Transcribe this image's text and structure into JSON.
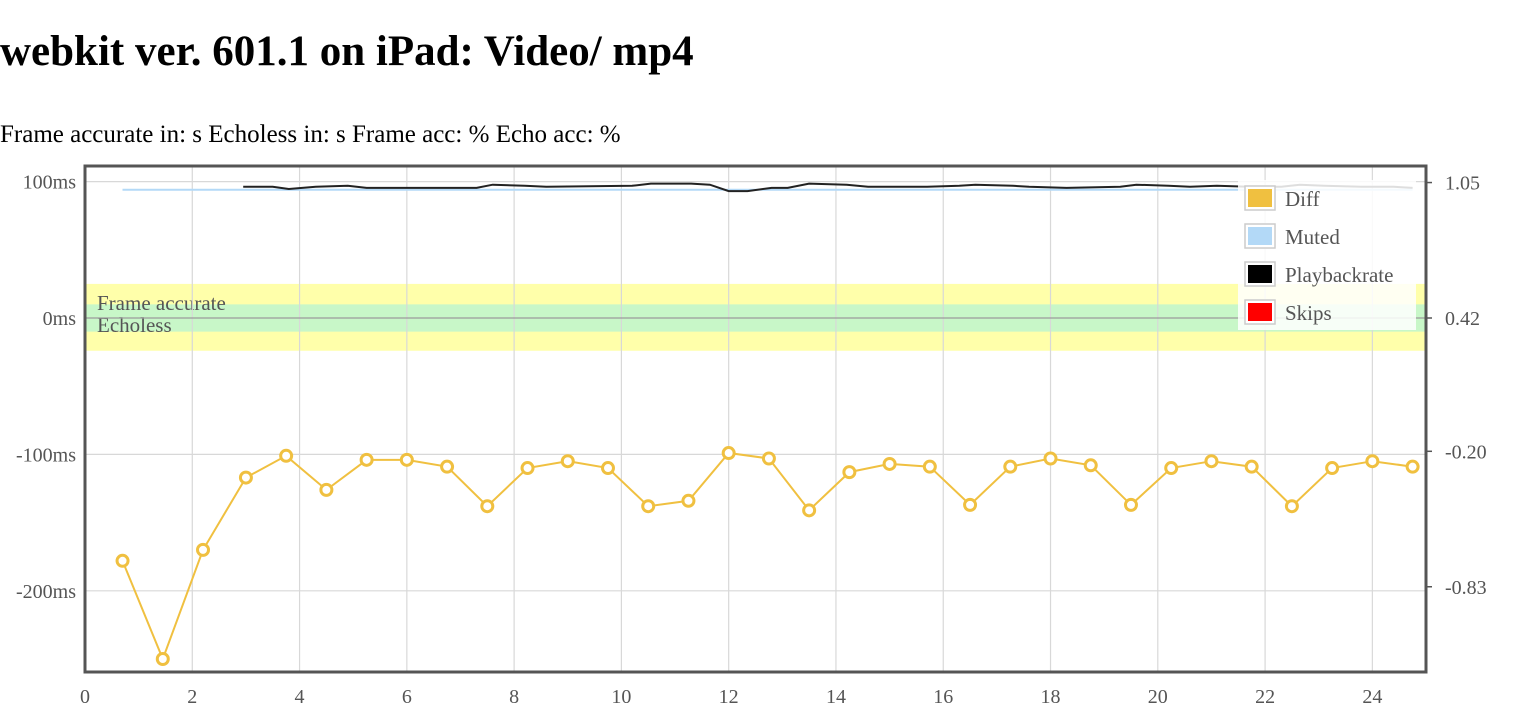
{
  "page": {
    "title": "webkit ver. 601.1 on iPad: Video/ mp4",
    "stats": {
      "frame_accurate": "Frame accurate in: s",
      "echoless": "Echoless in: s",
      "frame_acc": "Frame acc: %",
      "echo_acc": "Echo acc: %"
    }
  },
  "chart_data": {
    "type": "line",
    "x_ticks": [
      0,
      2,
      4,
      6,
      8,
      10,
      12,
      14,
      16,
      18,
      20,
      22,
      24
    ],
    "xlim": [
      0,
      25
    ],
    "y_left": {
      "ticks": [
        100,
        0,
        -100,
        -200
      ],
      "tick_labels": [
        "100ms",
        "0ms",
        "-100ms",
        "-200ms"
      ],
      "ylim": [
        -260,
        112
      ]
    },
    "y_right": {
      "ticks": [
        1.05,
        0.42,
        -0.2,
        -0.83
      ],
      "tick_labels": [
        "1.05",
        "0.42",
        "-0.20",
        "-0.83"
      ]
    },
    "grid": true,
    "bands": [
      {
        "name": "Frame accurate",
        "from": -24,
        "to": 25,
        "color": "#ffffaa"
      },
      {
        "name": "Echoless",
        "from": -10,
        "to": 10,
        "color": "#c8f7c8"
      }
    ],
    "legend": {
      "placement": "top-right",
      "items": [
        {
          "label": "Diff",
          "color": "#f0c040"
        },
        {
          "label": "Muted",
          "color": "#b3d9f7"
        },
        {
          "label": "Playbackrate",
          "color": "#000000"
        },
        {
          "label": "Skips",
          "color": "#ff0000"
        }
      ]
    },
    "series": [
      {
        "name": "Diff",
        "color": "#f0c040",
        "x": [
          0.7,
          1.45,
          2.2,
          3.0,
          3.75,
          4.5,
          5.25,
          6.0,
          6.75,
          7.5,
          8.25,
          9.0,
          9.75,
          10.5,
          11.25,
          12.0,
          12.75,
          13.5,
          14.25,
          15.0,
          15.75,
          16.5,
          17.25,
          18.0,
          18.75,
          19.5,
          20.25,
          21.0,
          21.75,
          22.5,
          23.25,
          24.0,
          24.75
        ],
        "y": [
          -178,
          -250,
          -170,
          -117,
          -101,
          -126,
          -104,
          -104,
          -109,
          -138,
          -110,
          -105,
          -110,
          -138,
          -134,
          -99,
          -103,
          -141,
          -113,
          -107,
          -109,
          -137,
          -109,
          -103,
          -108,
          -137,
          -110,
          -105,
          -109,
          -138,
          -110,
          -105,
          -109
        ]
      },
      {
        "name": "Muted",
        "color": "#b3d9f7",
        "x": [
          0.7,
          24.75
        ],
        "y": [
          94,
          94
        ]
      },
      {
        "name": "Playbackrate",
        "color": "#222222",
        "x": [
          2.95,
          3.5,
          3.8,
          4.3,
          4.9,
          5.25,
          6.4,
          7.3,
          7.6,
          8.2,
          8.6,
          10.2,
          10.55,
          11.3,
          11.65,
          12.0,
          12.35,
          12.8,
          13.1,
          13.5,
          14.2,
          14.6,
          15.7,
          16.3,
          16.6,
          17.3,
          17.6,
          18.3,
          19.3,
          19.6,
          20.2,
          20.6,
          21.1,
          21.7,
          22.3,
          22.65,
          23.1,
          23.8,
          24.4,
          24.75
        ],
        "y": [
          1.03,
          1.03,
          1.02,
          1.03,
          1.035,
          1.025,
          1.025,
          1.025,
          1.04,
          1.035,
          1.03,
          1.035,
          1.045,
          1.045,
          1.04,
          1.01,
          1.01,
          1.025,
          1.025,
          1.045,
          1.04,
          1.03,
          1.03,
          1.035,
          1.04,
          1.035,
          1.03,
          1.025,
          1.03,
          1.04,
          1.035,
          1.03,
          1.035,
          1.03,
          1.03,
          1.04,
          1.035,
          1.03,
          1.03,
          1.025
        ]
      }
    ]
  }
}
